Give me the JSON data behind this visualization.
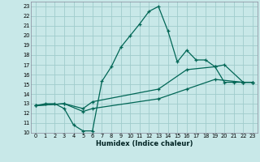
{
  "xlabel": "Humidex (Indice chaleur)",
  "xlim": [
    -0.5,
    23.5
  ],
  "ylim": [
    10,
    23.5
  ],
  "bg_color": "#c8e8e8",
  "grid_color": "#a0cccc",
  "line_color": "#006655",
  "line1_x": [
    0,
    1,
    2,
    3,
    4,
    5,
    6,
    7,
    8,
    9,
    10,
    11,
    12,
    13,
    14,
    15,
    16,
    17,
    18,
    19,
    20,
    21,
    22,
    23
  ],
  "line1_y": [
    12.8,
    13.0,
    13.0,
    12.5,
    10.8,
    10.2,
    10.2,
    15.3,
    16.8,
    18.8,
    20.0,
    21.2,
    22.5,
    23.0,
    20.5,
    17.3,
    18.5,
    17.5,
    17.5,
    16.8,
    15.2,
    15.2,
    15.2,
    15.2
  ],
  "line2_x": [
    0,
    3,
    5,
    6,
    13,
    16,
    19,
    20,
    22,
    23
  ],
  "line2_y": [
    12.8,
    13.0,
    12.5,
    13.2,
    14.5,
    16.5,
    16.8,
    17.0,
    15.2,
    15.2
  ],
  "line3_x": [
    0,
    3,
    5,
    6,
    13,
    16,
    19,
    22,
    23
  ],
  "line3_y": [
    12.8,
    13.0,
    12.2,
    12.5,
    13.5,
    14.5,
    15.5,
    15.2,
    15.2
  ],
  "xticks": [
    0,
    1,
    2,
    3,
    4,
    5,
    6,
    7,
    8,
    9,
    10,
    11,
    12,
    13,
    14,
    15,
    16,
    17,
    18,
    19,
    20,
    21,
    22,
    23
  ],
  "yticks": [
    10,
    11,
    12,
    13,
    14,
    15,
    16,
    17,
    18,
    19,
    20,
    21,
    22,
    23
  ]
}
